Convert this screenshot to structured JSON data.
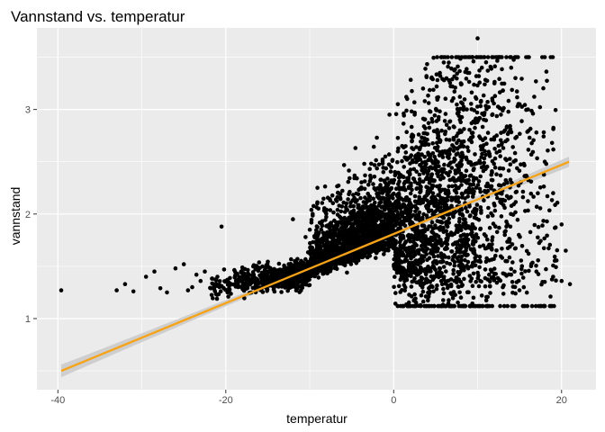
{
  "chart_data": {
    "type": "scatter",
    "title": "Vannstand vs. temperatur",
    "xlabel": "temperatur",
    "ylabel": "vannstand",
    "xlim": [
      -42.5,
      24.1
    ],
    "ylim": [
      0.32,
      3.78
    ],
    "x_ticks": [
      -40,
      -20,
      0,
      20
    ],
    "y_ticks": [
      1,
      2,
      3
    ],
    "x_tick_labels": [
      "-40",
      "-20",
      "0",
      "20"
    ],
    "y_tick_labels": [
      "1",
      "2",
      "3"
    ],
    "grid": true,
    "panel_background": "#ebebeb",
    "grid_color": "#ffffff",
    "point_color": "#000000",
    "trend_color": "#f5a31a",
    "band_color": "#c4c4c4",
    "trend_line": {
      "method": "linear",
      "x": [
        -39.6,
        20.9
      ],
      "y": [
        0.5,
        2.5
      ],
      "band_halfwidth_at_ends": 0.06
    },
    "points": [
      [
        -39.6,
        1.27
      ],
      [
        -33.0,
        1.27
      ],
      [
        -32.0,
        1.33
      ],
      [
        -31.0,
        1.26
      ],
      [
        -29.5,
        1.4
      ],
      [
        -28.5,
        1.45
      ],
      [
        -27.8,
        1.29
      ],
      [
        -27.0,
        1.25
      ],
      [
        -26.0,
        1.48
      ],
      [
        -25.0,
        1.52
      ],
      [
        -24.5,
        1.27
      ],
      [
        -24.0,
        1.3
      ],
      [
        -23.5,
        1.42
      ],
      [
        -23.0,
        1.36
      ],
      [
        -22.5,
        1.45
      ],
      [
        -21.5,
        1.33
      ],
      [
        -21.0,
        1.4
      ],
      [
        -20.5,
        1.88
      ],
      [
        -20.2,
        1.47
      ],
      [
        -19.8,
        1.25
      ],
      [
        -12.0,
        1.95
      ],
      [
        -10.5,
        1.78
      ],
      [
        -9.0,
        1.72
      ],
      [
        -8.0,
        1.82
      ],
      [
        -6.5,
        2.08
      ],
      [
        -5.0,
        1.95
      ],
      [
        -3.5,
        2.48
      ],
      [
        -3.0,
        2.28
      ],
      [
        -2.0,
        2.73
      ],
      [
        -1.0,
        2.55
      ],
      [
        -0.5,
        2.95
      ],
      [
        0.5,
        3.05
      ],
      [
        1.5,
        3.12
      ],
      [
        2.5,
        2.95
      ],
      [
        3.5,
        3.2
      ],
      [
        4.5,
        3.3
      ],
      [
        5.5,
        3.35
      ],
      [
        6.0,
        3.28
      ],
      [
        7.0,
        3.22
      ],
      [
        8.0,
        3.25
      ],
      [
        9.0,
        3.35
      ],
      [
        9.5,
        3.46
      ],
      [
        10.0,
        3.68
      ],
      [
        10.5,
        3.4
      ],
      [
        11.0,
        3.45
      ],
      [
        12.0,
        3.25
      ],
      [
        13.0,
        3.18
      ],
      [
        14.0,
        3.4
      ],
      [
        14.5,
        3.3
      ],
      [
        15.0,
        3.05
      ],
      [
        16.0,
        3.0
      ],
      [
        17.0,
        2.78
      ],
      [
        18.0,
        2.5
      ],
      [
        19.0,
        2.2
      ],
      [
        20.0,
        1.9
      ],
      [
        20.5,
        1.65
      ],
      [
        20.0,
        1.36
      ],
      [
        21.0,
        1.33
      ],
      [
        19.0,
        1.4
      ],
      [
        18.0,
        1.35
      ],
      [
        17.0,
        1.45
      ],
      [
        15.5,
        1.3
      ],
      [
        14.0,
        1.42
      ],
      [
        13.0,
        1.3
      ],
      [
        12.0,
        1.38
      ],
      [
        10.5,
        1.22
      ],
      [
        9.5,
        1.2
      ],
      [
        8.0,
        1.35
      ],
      [
        6.0,
        1.4
      ],
      [
        4.0,
        1.48
      ]
    ],
    "cloud": {
      "n": 4200,
      "seed": 7,
      "weighted_x_centers": [
        [
          -6,
          0.42
        ],
        [
          5,
          0.4
        ],
        [
          -14,
          0.1
        ],
        [
          12,
          0.08
        ]
      ],
      "description_for_generation": "dense main cluster"
    }
  }
}
